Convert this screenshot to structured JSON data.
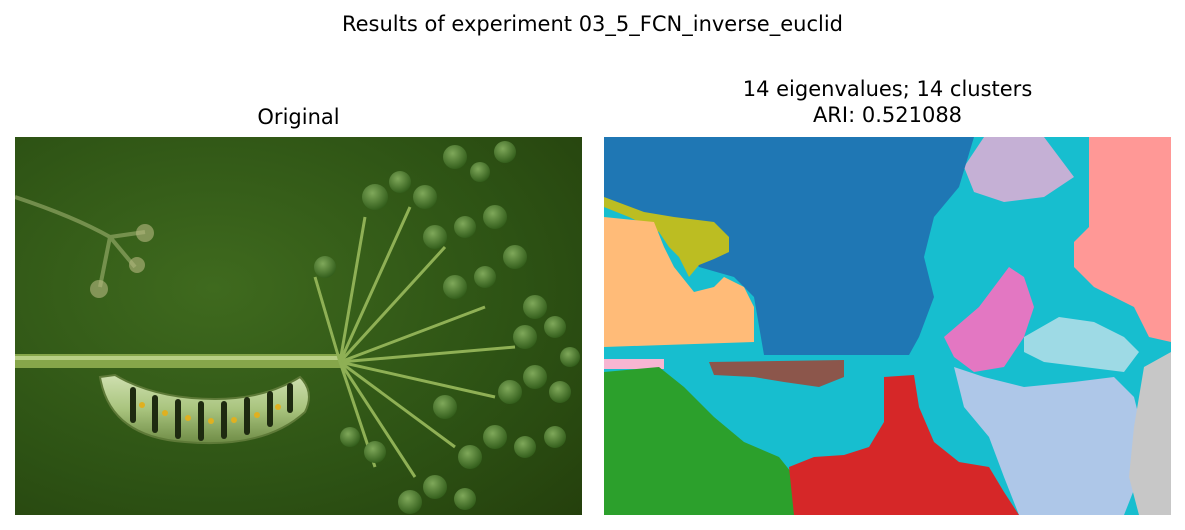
{
  "figure": {
    "suptitle": "Results of experiment 03_5_FCN_inverse_euclid"
  },
  "left_panel": {
    "title": "Original"
  },
  "right_panel": {
    "title_line1": "14 eigenvalues; 14 clusters",
    "title_line2": "ARI: 0.521088"
  },
  "colors": {
    "blue": "#1f77b4",
    "orange_light": "#ffbb78",
    "olive": "#bcbd22",
    "green": "#2ca02c",
    "red": "#d62728",
    "brown": "#8c564b",
    "pink": "#e377c2",
    "cyan": "#17becf",
    "lavender": "#aec7e8",
    "light_cyan": "#9edae5",
    "salmon": "#ff9896",
    "gray": "#c7c7c7",
    "thistle": "#c5b0d5",
    "light_pink": "#f7b6d2"
  }
}
